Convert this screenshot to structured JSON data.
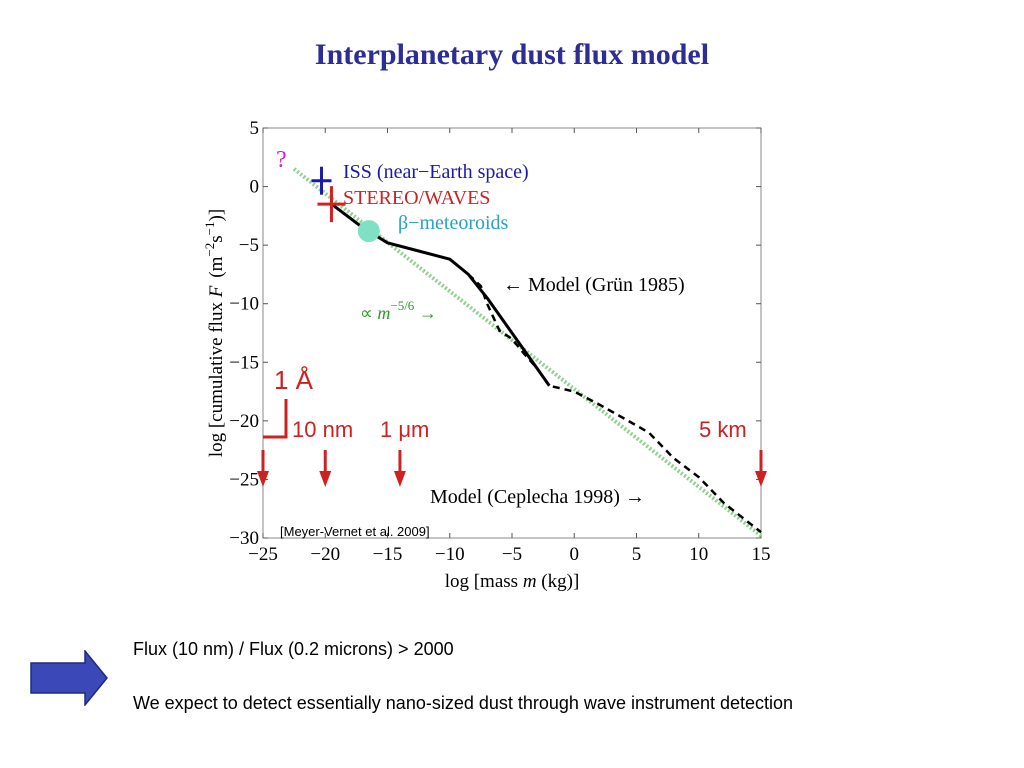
{
  "slide": {
    "title": "Interplanetary dust flux model",
    "line1": "Flux (10 nm) / Flux (0.2 microns) > 2000",
    "line2": "We expect to detect essentially nano-sized dust through wave instrument detection"
  },
  "chart_data": {
    "type": "line",
    "xlabel_prefix": "log [mass ",
    "xlabel_var": "m",
    "xlabel_suffix": " (kg)]",
    "ylabel_prefix": "log [cumulative flux ",
    "ylabel_var": "F",
    "ylabel_unit": "(m",
    "ylabel_sup1": "−2",
    "ylabel_mid": "s",
    "ylabel_sup2": "−1",
    "ylabel_end": ")]",
    "xlim": [
      -25,
      15
    ],
    "ylim": [
      -30,
      5
    ],
    "xticks": [
      -25,
      -20,
      -15,
      -10,
      -5,
      0,
      5,
      10,
      15
    ],
    "yticks": [
      5,
      0,
      -5,
      -10,
      -15,
      -20,
      -25,
      -30
    ],
    "xtick_labels": [
      "−25",
      "−20",
      "−15",
      "−10",
      "−5",
      "0",
      "5",
      "10",
      "15"
    ],
    "ytick_labels": [
      "5",
      "0",
      "−5",
      "−10",
      "−15",
      "−20",
      "−25",
      "−30"
    ],
    "series": [
      {
        "style": "solid",
        "color": "#000000",
        "x": [
          -19.5,
          -17,
          -15,
          -12.5,
          -10,
          -8.5,
          -7,
          -5,
          -3,
          -2
        ],
        "y": [
          -1.5,
          -3.5,
          -4.8,
          -5.5,
          -6.2,
          -7.5,
          -9.5,
          -12.5,
          -15.5,
          -17
        ]
      },
      {
        "style": "dashed",
        "color": "#000000",
        "x": [
          -8.5,
          -7.5,
          -7,
          -6,
          -5,
          -4,
          -3,
          -2,
          0,
          2,
          4,
          6,
          8,
          10,
          12,
          15
        ],
        "y": [
          -7.5,
          -8.5,
          -10,
          -12.3,
          -13,
          -14.3,
          -15.5,
          -17,
          -17.5,
          -18.6,
          -19.8,
          -21,
          -23.2,
          -24.8,
          -27,
          -29.5
        ]
      },
      {
        "style": "dotted",
        "color": "#8fd18f",
        "x": [
          -22.5,
          15
        ],
        "y": [
          1.5,
          -29.8
        ]
      }
    ],
    "markers": [
      {
        "name": "ISS (near−Earth space)",
        "shape": "plus",
        "color": "#1a1aa8",
        "x": -20.3,
        "y": 0.5
      },
      {
        "name": "STEREO/WAVES",
        "shape": "plus",
        "color": "#d42020",
        "x": -19.5,
        "y": -1.5
      },
      {
        "name": "β−meteoroids",
        "shape": "circle",
        "color": "#7fe0c4",
        "x": -16.5,
        "y": -3.8
      }
    ],
    "annotations": {
      "question": "?",
      "iss": "ISS (near−Earth space)",
      "stereo": "STEREO/WAVES",
      "beta": "β−meteoroids",
      "model_grun": "← Model (Grün 1985)",
      "slope_prefix": "∝ ",
      "slope_var": "m",
      "slope_exp": "−5/6",
      "slope_arrow": " →",
      "model_ceplecha": "Model (Ceplecha 1998) →",
      "citation": "[Meyer-Vernet et al. 2009]",
      "size_1A": "1 Å",
      "size_10nm": "10 nm",
      "size_1um": "1 μm",
      "size_5km": "5 km"
    },
    "size_markers_x": [
      -25,
      -20,
      -14,
      15
    ],
    "colors": {
      "red": "#cc2222",
      "green": "#2a9a2a",
      "navy": "#1a1aa8",
      "cyan": "#2aa0c8",
      "magenta": "#d020d0"
    }
  }
}
